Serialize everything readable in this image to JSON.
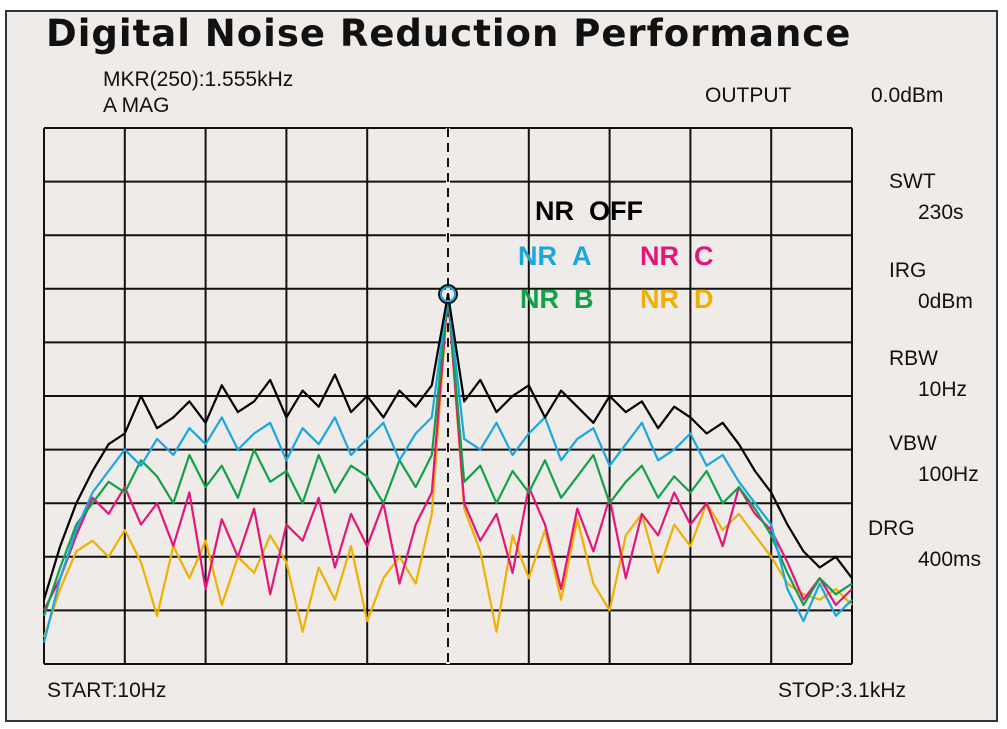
{
  "chart_data": {
    "type": "line",
    "title": "Digital Noise Reduction Performance",
    "marker": {
      "label": "MKR(250):1.555kHz",
      "frequency_hz": 1555,
      "level_div": 6.9
    },
    "mode": "A  MAG",
    "start_label": "START:10Hz",
    "stop_label": "STOP:3.1kHz",
    "xlim_hz": [
      10,
      3100
    ],
    "ylim_div": [
      0,
      10
    ],
    "grid": {
      "x_divisions": 10,
      "y_divisions": 10,
      "on": true
    },
    "settings": [
      {
        "name": "OUTPUT",
        "value": "0.0dBm"
      },
      {
        "name": "SWT",
        "value": "230s"
      },
      {
        "name": "IRG",
        "value": "0dBm"
      },
      {
        "name": "RBW",
        "value": "10Hz"
      },
      {
        "name": "VBW",
        "value": "100Hz"
      },
      {
        "name": "DRG",
        "value": "400ms"
      }
    ],
    "series": [
      {
        "name": "NR OFF",
        "color": "#000000",
        "values": [
          1.2,
          2.2,
          3.0,
          3.6,
          4.1,
          4.3,
          5.0,
          4.4,
          4.6,
          4.9,
          4.5,
          5.2,
          4.7,
          4.9,
          5.3,
          4.6,
          5.1,
          4.8,
          5.4,
          4.7,
          5.0,
          4.6,
          5.1,
          4.8,
          5.2,
          6.9,
          4.9,
          5.3,
          4.7,
          5.0,
          5.2,
          4.6,
          5.1,
          4.8,
          4.5,
          5.0,
          4.7,
          4.9,
          4.4,
          4.8,
          4.6,
          4.3,
          4.5,
          4.1,
          3.6,
          3.2,
          2.6,
          2.1,
          1.8,
          2.0,
          1.6
        ]
      },
      {
        "name": "NR A",
        "color": "#1aa7e0",
        "values": [
          0.4,
          1.6,
          2.5,
          3.2,
          3.6,
          4.0,
          3.7,
          4.2,
          3.9,
          4.4,
          4.1,
          4.6,
          4.0,
          4.3,
          4.5,
          3.8,
          4.4,
          4.1,
          4.6,
          3.9,
          4.2,
          4.5,
          3.8,
          4.3,
          4.6,
          6.9,
          4.2,
          4.0,
          4.5,
          3.9,
          4.3,
          4.6,
          3.8,
          4.2,
          4.4,
          3.7,
          4.1,
          4.5,
          3.8,
          4.0,
          4.3,
          3.7,
          3.9,
          3.4,
          3.0,
          2.6,
          1.4,
          0.8,
          1.5,
          0.9,
          1.2
        ]
      },
      {
        "name": "NR B",
        "color": "#13a048",
        "values": [
          0.9,
          1.8,
          2.6,
          3.0,
          3.4,
          3.2,
          3.8,
          3.5,
          3.0,
          3.9,
          3.3,
          3.7,
          3.1,
          4.0,
          3.4,
          3.6,
          3.0,
          3.9,
          3.2,
          3.7,
          3.5,
          3.0,
          3.8,
          3.3,
          3.9,
          6.9,
          3.4,
          3.7,
          3.0,
          3.6,
          3.2,
          3.8,
          3.1,
          3.5,
          3.9,
          3.0,
          3.4,
          3.7,
          3.1,
          3.5,
          3.2,
          3.6,
          3.0,
          3.3,
          2.9,
          2.4,
          1.7,
          1.1,
          1.6,
          1.3,
          1.5
        ]
      },
      {
        "name": "NR C",
        "color": "#e5157a",
        "values": [
          1.0,
          1.6,
          2.4,
          3.1,
          2.8,
          3.3,
          2.6,
          3.0,
          2.2,
          3.2,
          1.4,
          2.7,
          2.0,
          2.9,
          1.3,
          2.6,
          2.3,
          3.1,
          1.8,
          2.8,
          2.2,
          3.0,
          1.5,
          2.6,
          3.2,
          6.9,
          3.0,
          2.3,
          2.8,
          1.7,
          3.3,
          2.6,
          1.4,
          2.9,
          2.1,
          3.1,
          1.6,
          2.8,
          2.4,
          3.2,
          2.6,
          3.0,
          2.2,
          3.3,
          2.8,
          2.5,
          1.9,
          1.2,
          1.6,
          1.1,
          1.4
        ]
      },
      {
        "name": "NR D",
        "color": "#f0b000",
        "values": [
          0.5,
          1.4,
          2.1,
          2.3,
          2.0,
          2.5,
          1.9,
          0.9,
          2.2,
          1.6,
          2.3,
          1.1,
          2.0,
          1.7,
          2.4,
          1.9,
          0.6,
          1.8,
          1.2,
          2.2,
          0.8,
          1.6,
          2.0,
          1.5,
          2.8,
          6.9,
          2.9,
          2.1,
          0.6,
          2.4,
          1.6,
          2.5,
          1.2,
          2.7,
          1.5,
          1.0,
          2.4,
          2.8,
          1.7,
          2.6,
          2.2,
          3.0,
          2.5,
          2.8,
          2.4,
          2.0,
          1.5,
          1.3,
          1.2,
          1.4,
          1.1
        ]
      }
    ]
  }
}
